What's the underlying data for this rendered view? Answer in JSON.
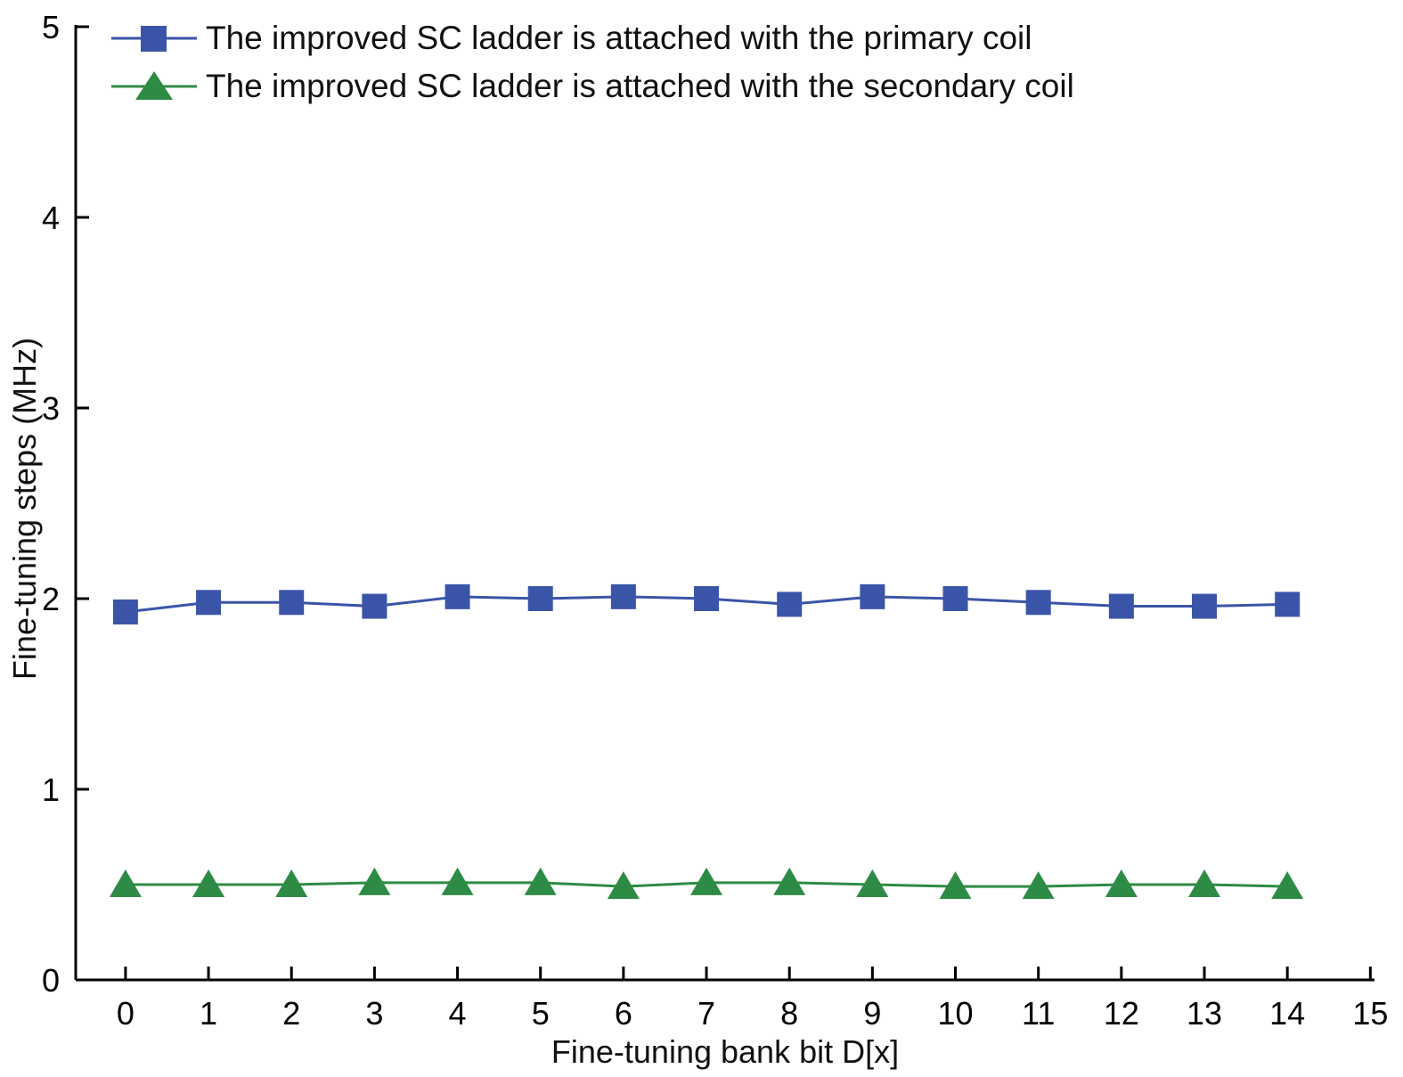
{
  "chart_data": {
    "type": "line",
    "title": "",
    "xlabel": "Fine-tuning bank bit D[x]",
    "ylabel": "Fine-tuning steps (MHz)",
    "x": [
      0,
      1,
      2,
      3,
      4,
      5,
      6,
      7,
      8,
      9,
      10,
      11,
      12,
      13,
      14
    ],
    "series": [
      {
        "name": "The improved SC ladder is attached with the primary coil",
        "marker": "square",
        "color": "#3a55a8",
        "values": [
          1.93,
          1.98,
          1.98,
          1.96,
          2.01,
          2.0,
          2.01,
          2.0,
          1.97,
          2.01,
          2.0,
          1.98,
          1.96,
          1.96,
          1.97
        ]
      },
      {
        "name": "The improved SC ladder is attached with the secondary coil",
        "marker": "triangle",
        "color": "#2e8b45",
        "values": [
          0.5,
          0.5,
          0.5,
          0.51,
          0.51,
          0.51,
          0.49,
          0.51,
          0.51,
          0.5,
          0.49,
          0.49,
          0.5,
          0.5,
          0.49
        ]
      }
    ],
    "xlim": [
      -0.6,
      15.05
    ],
    "ylim": [
      0,
      5
    ],
    "xticks": [
      0,
      1,
      2,
      3,
      4,
      5,
      6,
      7,
      8,
      9,
      10,
      11,
      12,
      13,
      14,
      15
    ],
    "yticks": [
      0,
      1,
      2,
      3,
      4,
      5
    ],
    "grid": false,
    "legend_position": "top-left",
    "axis_color": "#000000"
  }
}
